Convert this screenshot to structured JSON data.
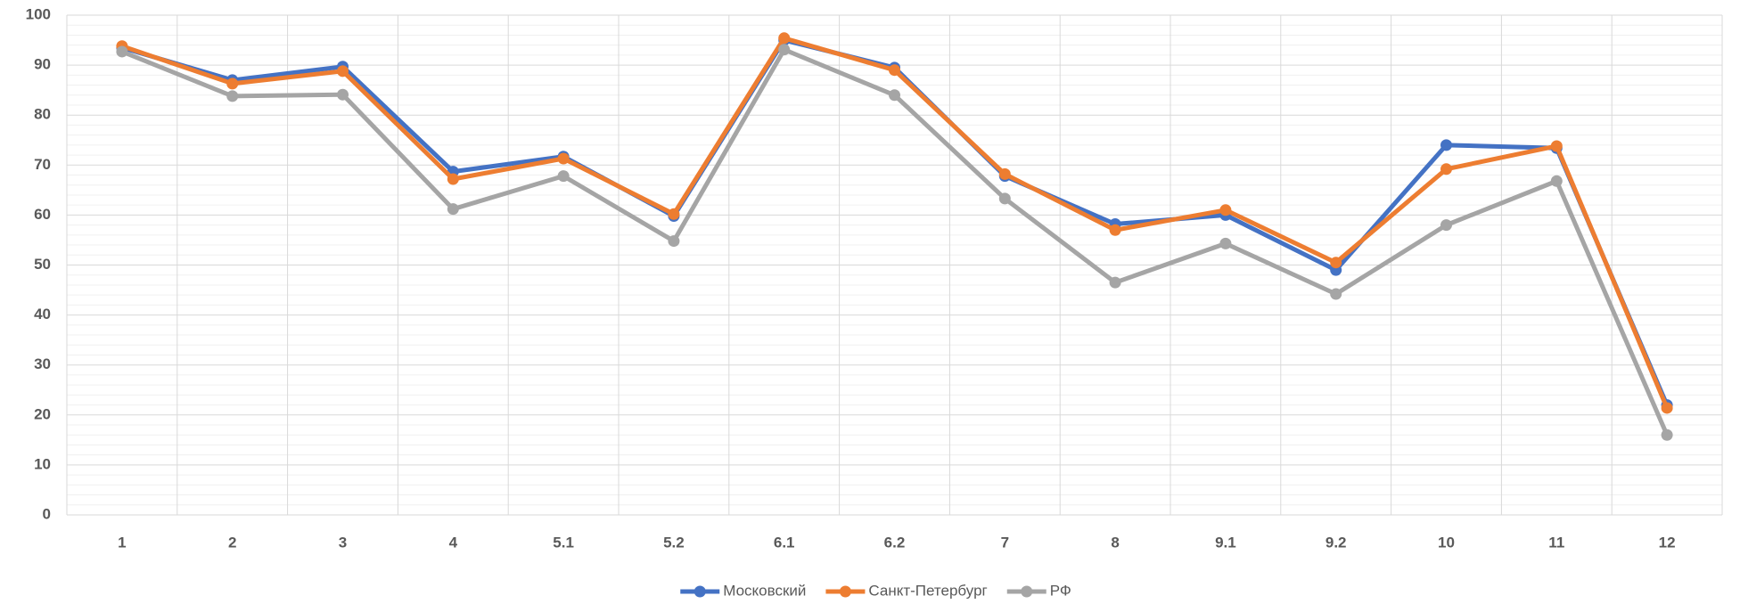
{
  "chart_data": {
    "type": "line",
    "categories": [
      "1",
      "2",
      "3",
      "4",
      "5.1",
      "5.2",
      "6.1",
      "6.2",
      "7",
      "8",
      "9.1",
      "9.2",
      "10",
      "11",
      "12"
    ],
    "series": [
      {
        "name": "Московский",
        "color": "#4472c4",
        "values": [
          93.5,
          87,
          89.7,
          68.7,
          71.7,
          59.8,
          95,
          89.5,
          67.8,
          58.2,
          60,
          49,
          74,
          73.4,
          22
        ]
      },
      {
        "name": "Санкт-Петербург",
        "color": "#ed7d31",
        "values": [
          93.8,
          86.3,
          88.8,
          67.2,
          71.3,
          60.2,
          95.4,
          89,
          68.2,
          57,
          61,
          50.5,
          69.2,
          73.8,
          21.4
        ]
      },
      {
        "name": "РФ",
        "color": "#a5a5a5",
        "values": [
          92.7,
          83.8,
          84.1,
          61.2,
          67.8,
          54.8,
          93.1,
          84,
          63.3,
          46.5,
          54.3,
          44.2,
          58,
          66.8,
          16
        ]
      }
    ],
    "ylim": [
      0,
      100
    ],
    "yticks": [
      0,
      10,
      20,
      30,
      40,
      50,
      60,
      70,
      80,
      90,
      100
    ],
    "grid": true,
    "legend": "bottom"
  }
}
